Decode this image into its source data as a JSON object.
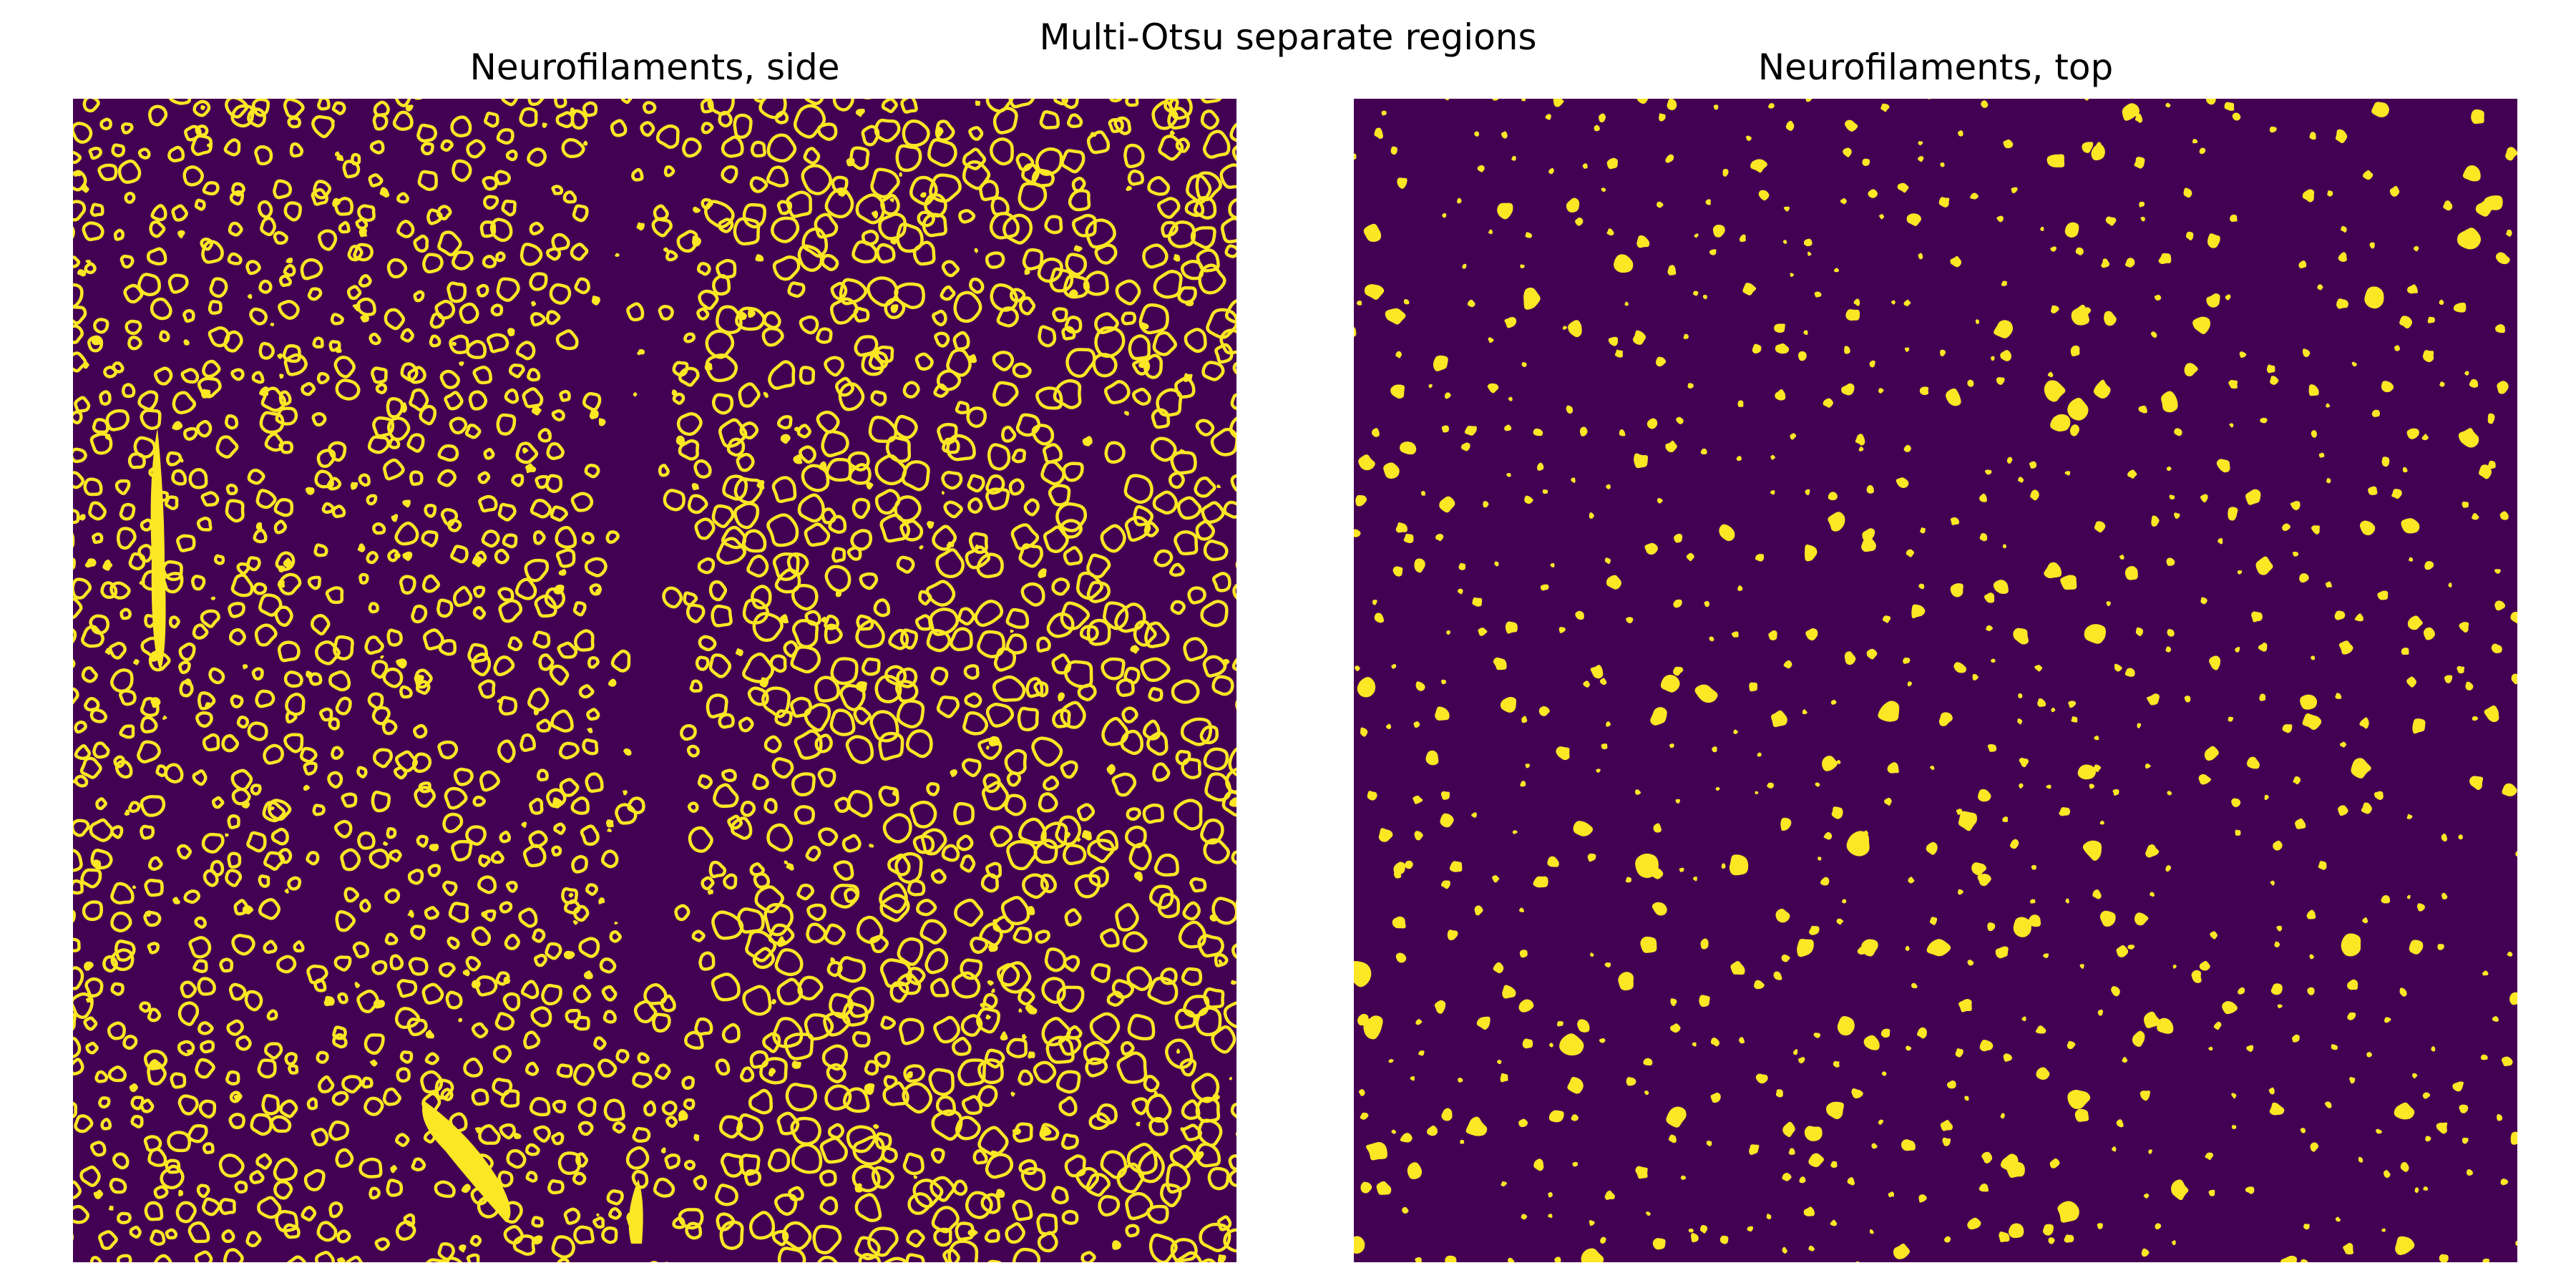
{
  "figure": {
    "title": "Multi-Otsu separate regions"
  },
  "panels": [
    {
      "title": "Neurofilaments, side",
      "image": "segmented-region-map-rings"
    },
    {
      "title": "Neurofilaments, top",
      "image": "segmented-region-map-blobs"
    }
  ],
  "colors": {
    "background_region": "#440154",
    "foreground_region": "#fde725",
    "page": "#ffffff"
  }
}
